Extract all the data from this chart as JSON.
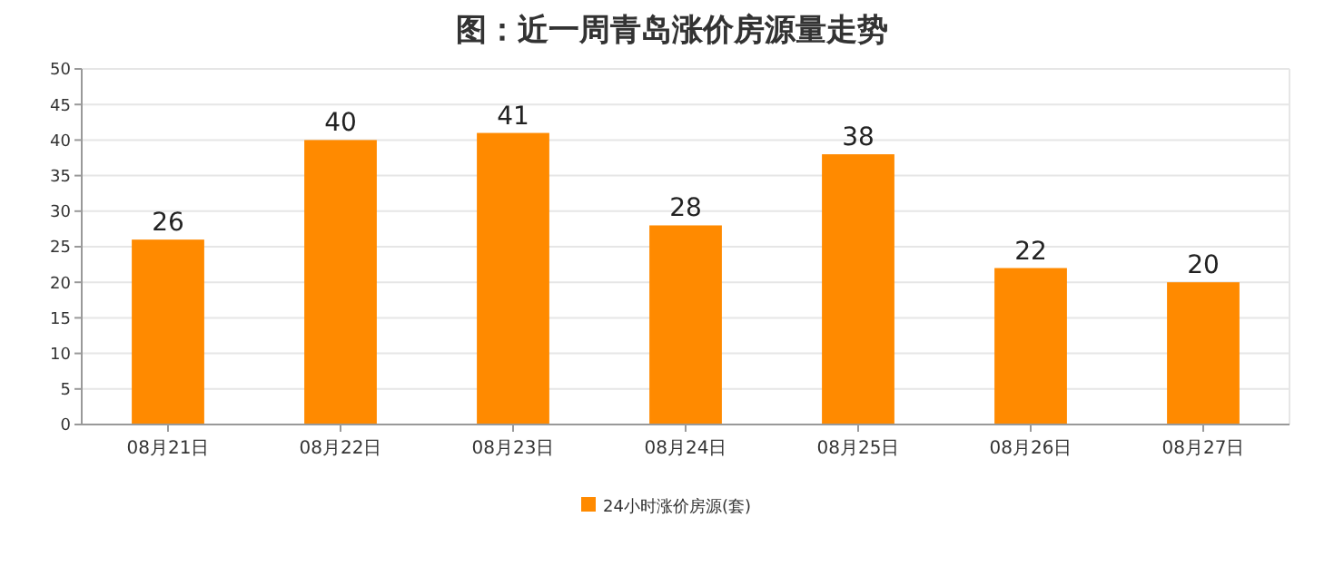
{
  "chart_data": {
    "type": "bar",
    "title": "图：近一周青岛涨价房源量走势",
    "categories": [
      "08月21日",
      "08月22日",
      "08月23日",
      "08月24日",
      "08月25日",
      "08月26日",
      "08月27日"
    ],
    "series": [
      {
        "name": "24小时涨价房源(套)",
        "color": "#ff8a00",
        "values": [
          26,
          40,
          41,
          28,
          38,
          22,
          20
        ]
      }
    ],
    "ylim": [
      0,
      50
    ],
    "yticks": [
      0,
      5,
      10,
      15,
      20,
      25,
      30,
      35,
      40,
      45,
      50
    ],
    "grid": "y",
    "legend": "bottom",
    "data_labels": true
  }
}
